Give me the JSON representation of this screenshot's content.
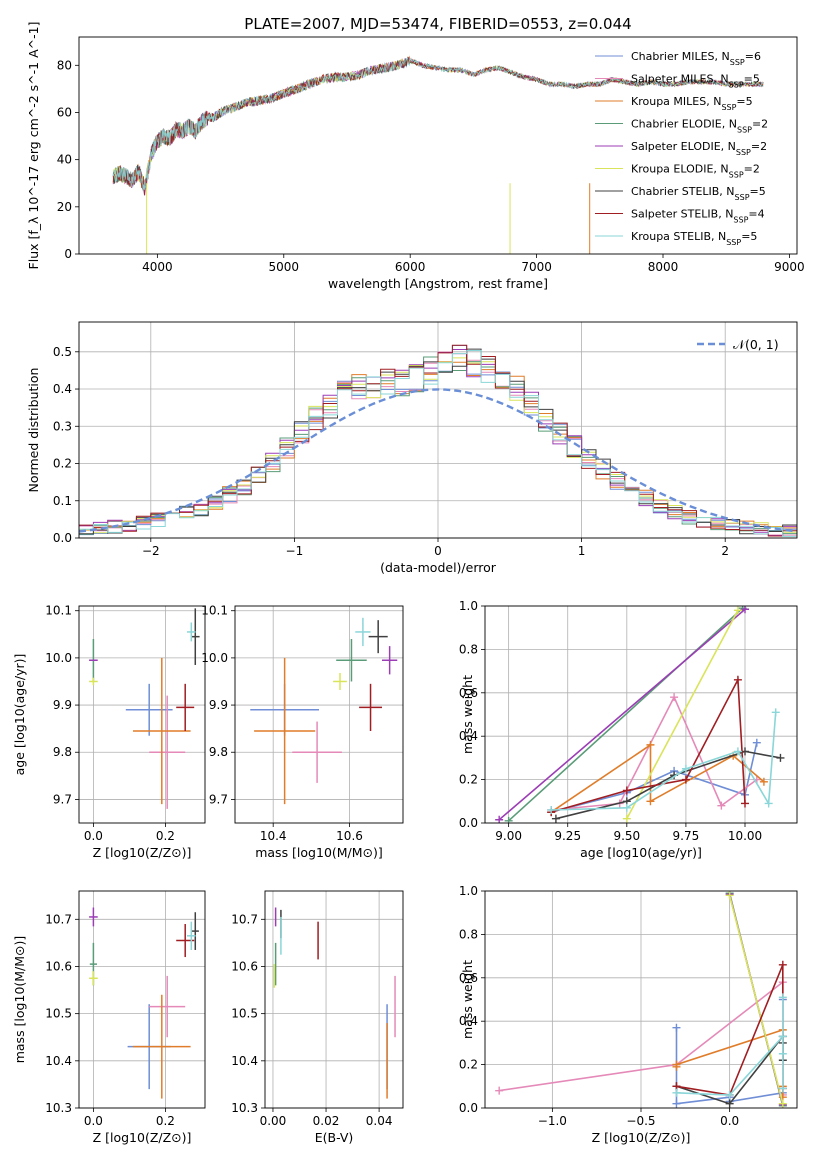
{
  "figure_title": "PLATE=2007, MJD=53474, FIBERID=0553, z=0.044",
  "colors": {
    "Chabrier MILES": "#6f8ed6",
    "Salpeter MILES": "#e58ab8",
    "Kroupa MILES": "#e07d2a",
    "Chabrier ELODIE": "#5a9c78",
    "Salpeter ELODIE": "#9b3db5",
    "Kroupa ELODIE": "#d9e45a",
    "Chabrier STELIB": "#404040",
    "Salpeter STELIB": "#a01e22",
    "Kroupa STELIB": "#8ad6d8",
    "gaussian": "#6a8fd6"
  },
  "chart_data": [
    {
      "id": "spectrum",
      "type": "line",
      "xlabel": "wavelength [Angstrom, rest frame]",
      "ylabel": "Flux [f_λ 10^-17 erg cm^-2 s^-1 A^-1]",
      "xlim": [
        3380,
        9060
      ],
      "ylim": [
        0,
        92
      ],
      "xticks": [
        4000,
        5000,
        6000,
        7000,
        8000,
        9000
      ],
      "yticks": [
        0,
        20,
        40,
        60,
        80
      ],
      "legend": "upper-right",
      "series": [
        {
          "name": "Chabrier MILES",
          "nssp": "6"
        },
        {
          "name": "Salpeter MILES",
          "nssp": "5"
        },
        {
          "name": "Kroupa MILES",
          "nssp": "5"
        },
        {
          "name": "Chabrier ELODIE",
          "nssp": "2"
        },
        {
          "name": "Salpeter ELODIE",
          "nssp": "2"
        },
        {
          "name": "Kroupa ELODIE",
          "nssp": "2"
        },
        {
          "name": "Chabrier STELIB",
          "nssp": "5"
        },
        {
          "name": "Salpeter STELIB",
          "nssp": "4"
        },
        {
          "name": "Kroupa STELIB",
          "nssp": "5"
        }
      ],
      "x": [
        3650,
        3700,
        3750,
        3800,
        3850,
        3900,
        3950,
        4000,
        4050,
        4100,
        4150,
        4200,
        4250,
        4300,
        4350,
        4400,
        4450,
        4500,
        4600,
        4700,
        4800,
        4900,
        5000,
        5100,
        5200,
        5300,
        5400,
        5500,
        5600,
        5700,
        5800,
        5900,
        6000,
        6100,
        6200,
        6300,
        6400,
        6500,
        6600,
        6700,
        6800,
        6900,
        7000,
        7100,
        7200,
        7300,
        7400,
        7500,
        7600,
        7700,
        7800,
        7900,
        8000,
        8100,
        8200,
        8300,
        8400,
        8500,
        8600,
        8700,
        8800
      ],
      "y": [
        33,
        34,
        33,
        31,
        35,
        28,
        42,
        48,
        50,
        49,
        53,
        52,
        54,
        52,
        56,
        58,
        58,
        60,
        62,
        64,
        65,
        66,
        68,
        70,
        72,
        74,
        75,
        75,
        76,
        78,
        79,
        80,
        82,
        80,
        79,
        78,
        78,
        76,
        78,
        79,
        77,
        75,
        74,
        72,
        72,
        71,
        72,
        72,
        74,
        73,
        72,
        73,
        72,
        72,
        73,
        73,
        73,
        72,
        72,
        72,
        72
      ]
    },
    {
      "id": "residuals",
      "type": "histogram",
      "xlabel": "(data-model)/error",
      "ylabel": "Normed distribution",
      "xlim": [
        -2.5,
        2.5
      ],
      "ylim": [
        0,
        0.58
      ],
      "xticks": [
        -2,
        -1,
        0,
        1,
        2
      ],
      "yticks": [
        0.0,
        0.1,
        0.2,
        0.3,
        0.4,
        0.5
      ],
      "grid": true,
      "legend": "upper-right",
      "gaussian_label": "𝒩(0, 1)",
      "bin_edges_start": -2.5,
      "bin_width": 0.1,
      "base": [
        0.018,
        0.025,
        0.03,
        0.035,
        0.04,
        0.048,
        0.055,
        0.068,
        0.08,
        0.095,
        0.115,
        0.14,
        0.17,
        0.2,
        0.24,
        0.285,
        0.32,
        0.355,
        0.39,
        0.41,
        0.41,
        0.42,
        0.415,
        0.43,
        0.45,
        0.47,
        0.48,
        0.47,
        0.45,
        0.42,
        0.4,
        0.36,
        0.32,
        0.28,
        0.245,
        0.21,
        0.185,
        0.155,
        0.13,
        0.105,
        0.085,
        0.068,
        0.055,
        0.045,
        0.038,
        0.032,
        0.028,
        0.025,
        0.022,
        0.02
      ]
    },
    {
      "id": "age-vs-Z",
      "type": "errorbar",
      "xlabel": "Z [log10(Z/Z⊙)]",
      "ylabel": "age [log10(age/yr)]",
      "xlim": [
        -0.04,
        0.31
      ],
      "ylim": [
        9.65,
        10.11
      ],
      "xticks": [
        0.0,
        0.2
      ],
      "yticks": [
        9.7,
        9.8,
        9.9,
        10.0,
        10.1
      ],
      "points": [
        {
          "series": "Chabrier MILES",
          "x": 0.155,
          "y": 9.89,
          "xerr": 0.065,
          "yerr": 0.055
        },
        {
          "series": "Salpeter MILES",
          "x": 0.205,
          "y": 9.8,
          "xerr": 0.05,
          "yerr": 0.12
        },
        {
          "series": "Kroupa MILES",
          "x": 0.19,
          "y": 9.845,
          "xerr": 0.08,
          "yerr": 0.155
        },
        {
          "series": "Chabrier ELODIE",
          "x": 0.0,
          "y": 9.995,
          "xerr": 0.008,
          "yerr": 0.045
        },
        {
          "series": "Salpeter ELODIE",
          "x": 0.0,
          "y": 9.995,
          "xerr": 0.012,
          "yerr": 0.0
        },
        {
          "series": "Kroupa ELODIE",
          "x": 0.0,
          "y": 9.95,
          "xerr": 0.012,
          "yerr": 0.008
        },
        {
          "series": "Chabrier STELIB",
          "x": 0.283,
          "y": 10.045,
          "xerr": 0.012,
          "yerr": 0.06
        },
        {
          "series": "Salpeter STELIB",
          "x": 0.255,
          "y": 9.895,
          "xerr": 0.025,
          "yerr": 0.05
        },
        {
          "series": "Kroupa STELIB",
          "x": 0.272,
          "y": 10.055,
          "xerr": 0.012,
          "yerr": 0.02
        }
      ]
    },
    {
      "id": "age-vs-mass",
      "type": "errorbar",
      "xlabel": "mass [log10(M/M⊙)]",
      "ylabel": "",
      "xlim": [
        10.3,
        10.74
      ],
      "ylim": [
        9.65,
        10.11
      ],
      "xticks": [
        10.4,
        10.6
      ],
      "yticks": [
        9.7,
        9.8,
        9.9,
        10.0,
        10.1
      ],
      "points": [
        {
          "series": "Chabrier MILES",
          "x": 10.43,
          "y": 9.89,
          "xerr": 0.09,
          "yerr": 0.055
        },
        {
          "series": "Salpeter MILES",
          "x": 10.515,
          "y": 9.8,
          "xerr": 0.065,
          "yerr": 0.065
        },
        {
          "series": "Kroupa MILES",
          "x": 10.43,
          "y": 9.845,
          "xerr": 0.08,
          "yerr": 0.155
        },
        {
          "series": "Chabrier ELODIE",
          "x": 10.605,
          "y": 9.995,
          "xerr": 0.04,
          "yerr": 0.045
        },
        {
          "series": "Salpeter ELODIE",
          "x": 10.705,
          "y": 9.995,
          "xerr": 0.02,
          "yerr": 0.03
        },
        {
          "series": "Kroupa ELODIE",
          "x": 10.575,
          "y": 9.95,
          "xerr": 0.018,
          "yerr": 0.018
        },
        {
          "series": "Chabrier STELIB",
          "x": 10.675,
          "y": 10.045,
          "xerr": 0.025,
          "yerr": 0.035
        },
        {
          "series": "Salpeter STELIB",
          "x": 10.655,
          "y": 9.895,
          "xerr": 0.03,
          "yerr": 0.05
        },
        {
          "series": "Kroupa STELIB",
          "x": 10.635,
          "y": 10.055,
          "xerr": 0.02,
          "yerr": 0.03
        }
      ]
    },
    {
      "id": "weight-vs-age",
      "type": "line",
      "xlabel": "age [log10(age/yr)]",
      "ylabel": "mass weight",
      "xlim": [
        8.9,
        10.22
      ],
      "ylim": [
        0,
        1.0
      ],
      "xticks": [
        9.0,
        9.25,
        9.5,
        9.75,
        10.0
      ],
      "yticks": [
        0.0,
        0.2,
        0.4,
        0.6,
        0.8,
        1.0
      ],
      "grid": true,
      "series": [
        {
          "name": "Chabrier MILES",
          "x": [
            9.18,
            9.5,
            9.7,
            10.0,
            10.05
          ],
          "y": [
            0.05,
            0.14,
            0.24,
            0.13,
            0.37
          ]
        },
        {
          "name": "Salpeter MILES",
          "x": [
            9.18,
            9.47,
            9.7,
            9.9,
            10.05
          ],
          "y": [
            0.06,
            0.09,
            0.58,
            0.08,
            0.2
          ]
        },
        {
          "name": "Kroupa MILES",
          "x": [
            9.18,
            9.6,
            9.6,
            9.95,
            10.08
          ],
          "y": [
            0.05,
            0.36,
            0.1,
            0.31,
            0.19
          ]
        },
        {
          "name": "Chabrier ELODIE",
          "x": [
            9.0,
            9.99
          ],
          "y": [
            0.01,
            0.99
          ]
        },
        {
          "name": "Salpeter ELODIE",
          "x": [
            8.96,
            10.0
          ],
          "y": [
            0.015,
            0.985
          ]
        },
        {
          "name": "Kroupa ELODIE",
          "x": [
            9.5,
            9.97
          ],
          "y": [
            0.02,
            0.98
          ]
        },
        {
          "name": "Chabrier STELIB",
          "x": [
            9.2,
            9.5,
            9.7,
            10.0,
            10.15
          ],
          "y": [
            0.02,
            0.1,
            0.22,
            0.33,
            0.3
          ]
        },
        {
          "name": "Salpeter STELIB",
          "x": [
            9.18,
            9.5,
            9.75,
            9.97,
            10.0
          ],
          "y": [
            0.05,
            0.15,
            0.2,
            0.66,
            0.09
          ]
        },
        {
          "name": "Kroupa STELIB",
          "x": [
            9.18,
            9.5,
            9.75,
            9.97,
            10.1,
            10.13
          ],
          "y": [
            0.06,
            0.07,
            0.25,
            0.33,
            0.09,
            0.51
          ]
        }
      ]
    },
    {
      "id": "mass-vs-Z",
      "type": "errorbar",
      "xlabel": "Z [log10(Z/Z⊙)]",
      "ylabel": "mass [log10(M/M⊙)]",
      "xlim": [
        -0.04,
        0.31
      ],
      "ylim": [
        10.3,
        10.76
      ],
      "xticks": [
        0.0,
        0.2
      ],
      "yticks": [
        10.3,
        10.4,
        10.5,
        10.6,
        10.7
      ],
      "points": [
        {
          "series": "Chabrier MILES",
          "x": 0.155,
          "y": 10.43,
          "xerr": 0.06,
          "yerr": 0.09
        },
        {
          "series": "Salpeter MILES",
          "x": 0.205,
          "y": 10.515,
          "xerr": 0.05,
          "yerr": 0.065
        },
        {
          "series": "Kroupa MILES",
          "x": 0.19,
          "y": 10.43,
          "xerr": 0.08,
          "yerr": 0.11
        },
        {
          "series": "Chabrier ELODIE",
          "x": 0.0,
          "y": 10.605,
          "xerr": 0.01,
          "yerr": 0.045
        },
        {
          "series": "Salpeter ELODIE",
          "x": 0.0,
          "y": 10.705,
          "xerr": 0.012,
          "yerr": 0.02
        },
        {
          "series": "Kroupa ELODIE",
          "x": 0.0,
          "y": 10.575,
          "xerr": 0.012,
          "yerr": 0.015
        },
        {
          "series": "Chabrier STELIB",
          "x": 0.283,
          "y": 10.675,
          "xerr": 0.01,
          "yerr": 0.04
        },
        {
          "series": "Salpeter STELIB",
          "x": 0.255,
          "y": 10.655,
          "xerr": 0.025,
          "yerr": 0.035
        },
        {
          "series": "Kroupa STELIB",
          "x": 0.272,
          "y": 10.665,
          "xerr": 0.012,
          "yerr": 0.03
        }
      ]
    },
    {
      "id": "mass-vs-EBV",
      "type": "errorbar",
      "xlabel": "E(B-V)",
      "ylabel": "",
      "xlim": [
        -0.003,
        0.049
      ],
      "ylim": [
        10.3,
        10.76
      ],
      "xticks": [
        0.0,
        0.02,
        0.04
      ],
      "yticks": [
        10.3,
        10.4,
        10.5,
        10.6,
        10.7
      ],
      "points": [
        {
          "series": "Chabrier MILES",
          "x": 0.043,
          "y": 10.43,
          "xerr": 0,
          "yerr": 0.09
        },
        {
          "series": "Salpeter MILES",
          "x": 0.046,
          "y": 10.515,
          "xerr": 0,
          "yerr": 0.065
        },
        {
          "series": "Kroupa MILES",
          "x": 0.043,
          "y": 10.4,
          "xerr": 0,
          "yerr": 0.08
        },
        {
          "series": "Chabrier ELODIE",
          "x": 0.001,
          "y": 10.605,
          "xerr": 0,
          "yerr": 0.045
        },
        {
          "series": "Salpeter ELODIE",
          "x": 0.001,
          "y": 10.705,
          "xerr": 0,
          "yerr": 0.02
        },
        {
          "series": "Kroupa ELODIE",
          "x": 0.0005,
          "y": 10.58,
          "xerr": 0,
          "yerr": 0.025
        },
        {
          "series": "Chabrier STELIB",
          "x": 0.003,
          "y": 10.69,
          "xerr": 0,
          "yerr": 0.03
        },
        {
          "series": "Salpeter STELIB",
          "x": 0.017,
          "y": 10.655,
          "xerr": 0,
          "yerr": 0.04
        },
        {
          "series": "Kroupa STELIB",
          "x": 0.003,
          "y": 10.665,
          "xerr": 0,
          "yerr": 0.04
        }
      ]
    },
    {
      "id": "weight-vs-Z",
      "type": "line",
      "xlabel": "Z [log10(Z/Z⊙)]",
      "ylabel": "mass weight",
      "xlim": [
        -1.38,
        0.38
      ],
      "ylim": [
        0,
        1.0
      ],
      "xticks": [
        -1.0,
        -0.5,
        0.0
      ],
      "yticks": [
        0.0,
        0.2,
        0.4,
        0.6,
        0.8,
        1.0
      ],
      "grid": true,
      "series": [
        {
          "name": "Chabrier MILES",
          "x": [
            -0.3,
            -0.3,
            0.0,
            0.0,
            0.3,
            0.3
          ],
          "y": [
            0.37,
            0.02,
            0.05,
            0.03,
            0.07,
            0.5
          ]
        },
        {
          "name": "Salpeter MILES",
          "x": [
            -1.3,
            -0.3,
            0.3,
            0.3
          ],
          "y": [
            0.08,
            0.2,
            0.58,
            0.06
          ]
        },
        {
          "name": "Kroupa MILES",
          "x": [
            -0.3,
            -0.3,
            0.3,
            0.3,
            0.3
          ],
          "y": [
            0.19,
            0.2,
            0.36,
            0.1,
            0.05
          ]
        },
        {
          "name": "Chabrier ELODIE",
          "x": [
            0.0,
            0.3
          ],
          "y": [
            0.99,
            0.01
          ]
        },
        {
          "name": "Salpeter ELODIE",
          "x": [
            0.0,
            0.3
          ],
          "y": [
            0.985,
            0.015
          ]
        },
        {
          "name": "Kroupa ELODIE",
          "x": [
            0.0,
            0.3
          ],
          "y": [
            0.98,
            0.02
          ]
        },
        {
          "name": "Chabrier STELIB",
          "x": [
            -0.3,
            0.0,
            0.3,
            0.3,
            0.3
          ],
          "y": [
            0.1,
            0.02,
            0.33,
            0.3,
            0.22
          ]
        },
        {
          "name": "Salpeter STELIB",
          "x": [
            -0.3,
            0.0,
            0.3,
            0.3
          ],
          "y": [
            0.1,
            0.06,
            0.66,
            0.09
          ]
        },
        {
          "name": "Kroupa STELIB",
          "x": [
            -0.3,
            0.0,
            0.3,
            0.3,
            0.3,
            0.3
          ],
          "y": [
            0.07,
            0.06,
            0.33,
            0.51,
            0.09,
            0.25
          ]
        }
      ]
    }
  ]
}
